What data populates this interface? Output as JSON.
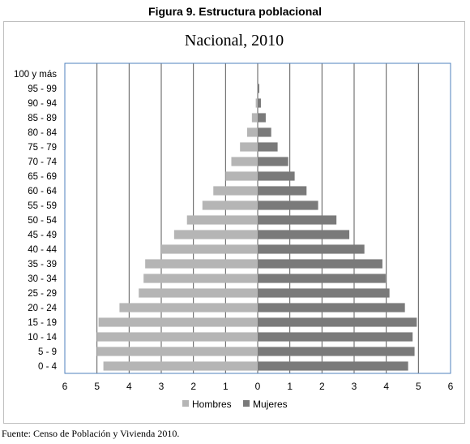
{
  "figure_title": "Figura 9. Estructura poblacional",
  "source_note": "Fuente: Censo de Población y Vivienda 2010.",
  "colors": {
    "hombres": "#b5b5b5",
    "mujeres": "#7a7a7a",
    "plot_border": "#4f81bd",
    "gridline": "#595959"
  },
  "chart_data": {
    "type": "bar",
    "orientation": "horizontal",
    "title": "Nacional, 2010",
    "categories": [
      "100 y más",
      "95 - 99",
      "90 - 94",
      "85 - 89",
      "80 - 84",
      "75 - 79",
      "70 - 74",
      "65 - 69",
      "60 - 64",
      "55 - 59",
      "50 - 54",
      "45 - 49",
      "40 - 44",
      "35 - 39",
      "30 - 34",
      "25 - 29",
      "20 - 24",
      "15 - 19",
      "10 - 14",
      "5 - 9",
      "0 - 4"
    ],
    "series": [
      {
        "name": "Hombres",
        "values": [
          0.0,
          0.02,
          0.06,
          0.18,
          0.33,
          0.55,
          0.82,
          1.0,
          1.38,
          1.72,
          2.2,
          2.6,
          3.0,
          3.5,
          3.55,
          3.7,
          4.3,
          4.95,
          5.0,
          5.0,
          4.8
        ]
      },
      {
        "name": "Mujeres",
        "values": [
          0.0,
          0.05,
          0.1,
          0.25,
          0.42,
          0.62,
          0.95,
          1.15,
          1.52,
          1.88,
          2.45,
          2.85,
          3.32,
          3.88,
          3.98,
          4.1,
          4.58,
          4.95,
          4.82,
          4.88,
          4.68
        ]
      }
    ],
    "xlim": [
      -6,
      6
    ],
    "x_ticks": [
      -6,
      -5,
      -4,
      -3,
      -2,
      -1,
      0,
      1,
      2,
      3,
      4,
      5,
      6
    ],
    "x_tick_labels": [
      "6",
      "5",
      "4",
      "3",
      "2",
      "1",
      "0",
      "1",
      "2",
      "3",
      "4",
      "5",
      "6"
    ],
    "grid": "vertical",
    "legend": "bottom",
    "legend_entries": [
      "Hombres",
      "Mujeres"
    ]
  }
}
